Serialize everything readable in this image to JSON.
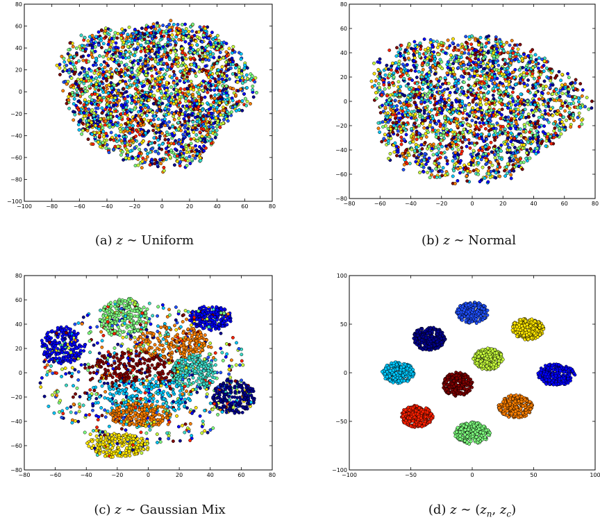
{
  "captions": [
    {
      "label": "(a)",
      "var": "z",
      "sym": "∼",
      "rest": "Uniform"
    },
    {
      "label": "(b)",
      "var": "z",
      "sym": "∼",
      "rest": "Normal"
    },
    {
      "label": "(c)",
      "var": "z",
      "sym": "∼",
      "rest": "Gaussian Mix"
    },
    {
      "label": "(d)",
      "var": "z",
      "sym": "∼",
      "rest_pre": "(",
      "sub1_base": "z",
      "sub1": "n",
      "sep": ", ",
      "sub2_base": "z",
      "sub2": "c",
      "rest_post": ")"
    }
  ],
  "palette": [
    "#00008f",
    "#0000ff",
    "#1f50ff",
    "#00c8ff",
    "#3cdcc8",
    "#7fff7f",
    "#c8ff3c",
    "#ffe600",
    "#ff8000",
    "#ff2000",
    "#800000"
  ],
  "chart_data": [
    {
      "type": "scatter",
      "xlim": [
        -100,
        80
      ],
      "ylim": [
        -100,
        80
      ],
      "xticks": [
        -100,
        -80,
        -60,
        -40,
        -20,
        0,
        20,
        40,
        60,
        80
      ],
      "yticks": [
        -100,
        -80,
        -60,
        -40,
        -20,
        0,
        20,
        40,
        60,
        80
      ],
      "grid": false,
      "distribution": "mixed",
      "clusters": [
        {
          "cx": -5,
          "cy": 0,
          "rx": 70,
          "ry": 68,
          "color": "all"
        }
      ]
    },
    {
      "type": "scatter",
      "xlim": [
        -80,
        80
      ],
      "ylim": [
        -80,
        80
      ],
      "xticks": [
        -80,
        -60,
        -40,
        -20,
        0,
        20,
        40,
        60,
        80
      ],
      "yticks": [
        -80,
        -60,
        -40,
        -20,
        0,
        20,
        40,
        60,
        80
      ],
      "grid": false,
      "distribution": "mixed",
      "clusters": [
        {
          "cx": 0,
          "cy": -5,
          "rx": 70,
          "ry": 62,
          "color": "all"
        }
      ]
    },
    {
      "type": "scatter",
      "xlim": [
        -80,
        80
      ],
      "ylim": [
        -80,
        80
      ],
      "xticks": [
        -80,
        -60,
        -40,
        -20,
        0,
        20,
        40,
        60,
        80
      ],
      "yticks": [
        -80,
        -60,
        -40,
        -20,
        0,
        20,
        40,
        60,
        80
      ],
      "grid": false,
      "distribution": "partially clustered",
      "clusters": [
        {
          "cx": -15,
          "cy": 45,
          "rx": 16,
          "ry": 16,
          "color": 5
        },
        {
          "cx": -55,
          "cy": 22,
          "rx": 14,
          "ry": 16,
          "color": 1
        },
        {
          "cx": 15,
          "cy": 25,
          "rx": 24,
          "ry": 14,
          "color": 8
        },
        {
          "cx": 40,
          "cy": 45,
          "rx": 14,
          "ry": 10,
          "color": 1
        },
        {
          "cx": -10,
          "cy": 2,
          "rx": 30,
          "ry": 16,
          "color": 10
        },
        {
          "cx": -5,
          "cy": -20,
          "rx": 35,
          "ry": 15,
          "color": 3
        },
        {
          "cx": 55,
          "cy": -20,
          "rx": 14,
          "ry": 14,
          "color": 0
        },
        {
          "cx": -20,
          "cy": -60,
          "rx": 20,
          "ry": 10,
          "color": 7
        },
        {
          "cx": -5,
          "cy": -35,
          "rx": 20,
          "ry": 10,
          "color": 8
        },
        {
          "cx": 30,
          "cy": 0,
          "rx": 15,
          "ry": 14,
          "color": 4
        }
      ]
    },
    {
      "type": "scatter",
      "xlim": [
        -100,
        100
      ],
      "ylim": [
        -100,
        100
      ],
      "xticks": [
        -100,
        -50,
        0,
        50,
        100
      ],
      "yticks": [
        -100,
        -50,
        0,
        50,
        100
      ],
      "grid": false,
      "distribution": "ten separated clusters",
      "clusters": [
        {
          "cx": 0,
          "cy": 62,
          "rx": 13,
          "ry": 11,
          "color": 2
        },
        {
          "cx": -35,
          "cy": 35,
          "rx": 13,
          "ry": 12,
          "color": 0
        },
        {
          "cx": 45,
          "cy": 45,
          "rx": 13,
          "ry": 11,
          "color": 7
        },
        {
          "cx": 13,
          "cy": 14,
          "rx": 12,
          "ry": 11,
          "color": 6
        },
        {
          "cx": -60,
          "cy": 0,
          "rx": 13,
          "ry": 11,
          "color": 3
        },
        {
          "cx": -12,
          "cy": -12,
          "rx": 12,
          "ry": 12,
          "color": 10
        },
        {
          "cx": 68,
          "cy": -2,
          "rx": 15,
          "ry": 11,
          "color": 1
        },
        {
          "cx": -45,
          "cy": -45,
          "rx": 13,
          "ry": 11,
          "color": 9
        },
        {
          "cx": 35,
          "cy": -35,
          "rx": 14,
          "ry": 12,
          "color": 8
        },
        {
          "cx": 0,
          "cy": -62,
          "rx": 14,
          "ry": 11,
          "color": 5
        }
      ]
    }
  ]
}
